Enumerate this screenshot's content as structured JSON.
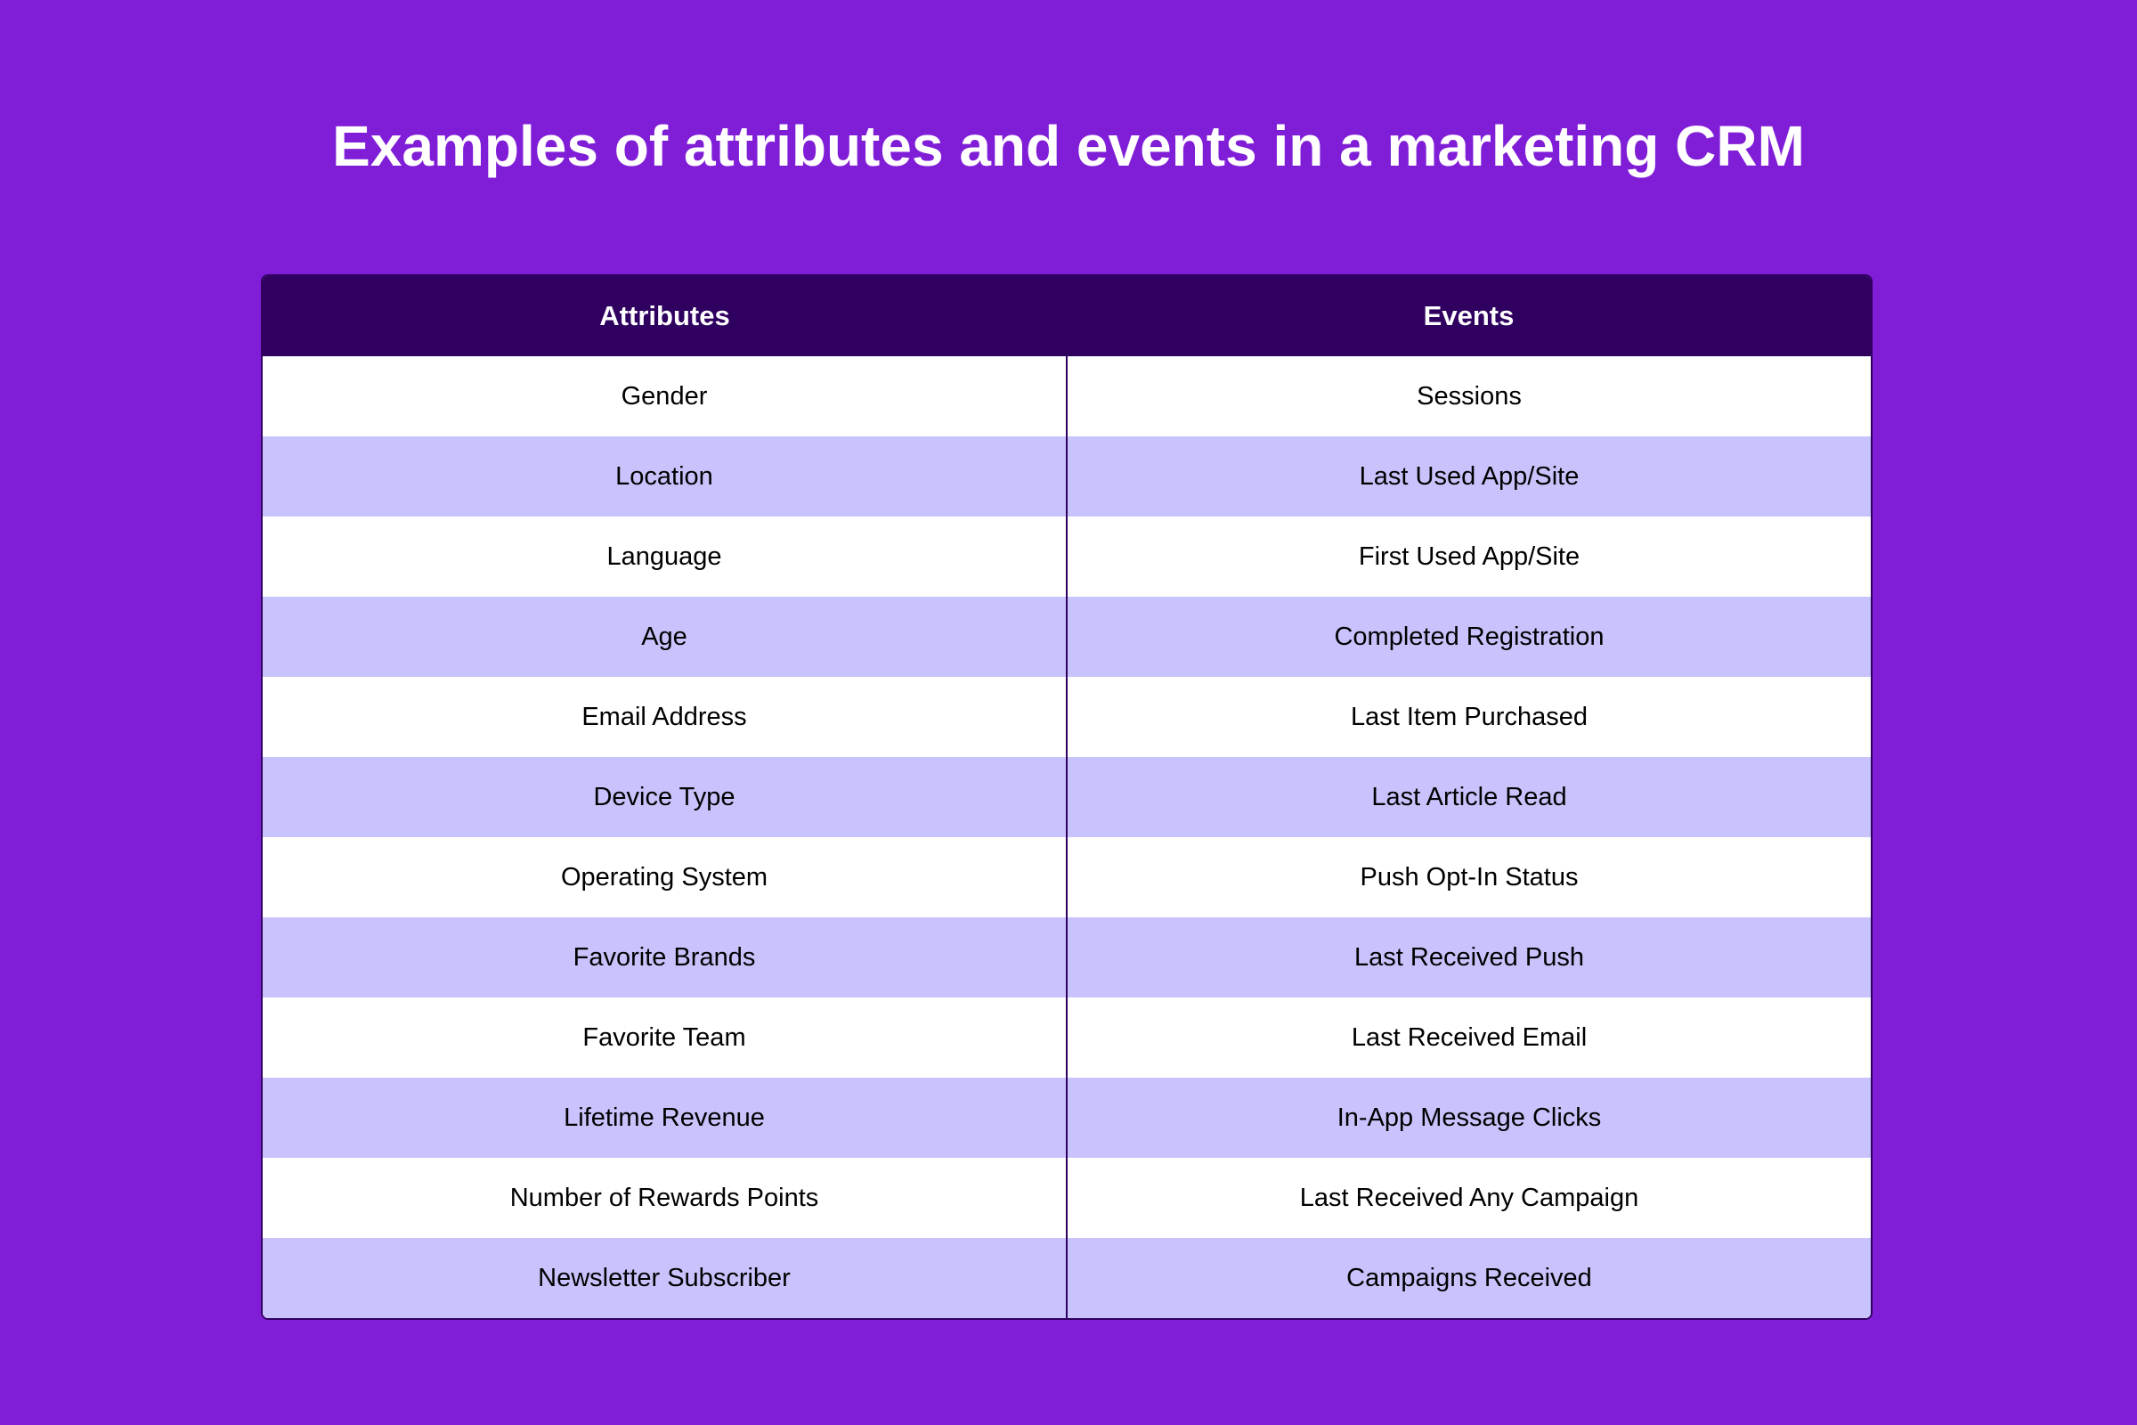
{
  "title": "Examples of attributes and events in a marketing CRM",
  "colors": {
    "background": "#801ed7",
    "header": "#2f0060",
    "stripe": "#c8c3fc"
  },
  "table": {
    "headers": [
      "Attributes",
      "Events"
    ],
    "rows": [
      [
        "Gender",
        "Sessions"
      ],
      [
        "Location",
        "Last Used App/Site"
      ],
      [
        "Language",
        "First Used App/Site"
      ],
      [
        "Age",
        "Completed Registration"
      ],
      [
        "Email Address",
        "Last Item Purchased"
      ],
      [
        "Device Type",
        "Last Article Read"
      ],
      [
        "Operating System",
        "Push Opt-In Status"
      ],
      [
        "Favorite Brands",
        "Last Received Push"
      ],
      [
        "Favorite Team",
        "Last Received Email"
      ],
      [
        "Lifetime Revenue",
        "In-App Message Clicks"
      ],
      [
        "Number of Rewards Points",
        "Last Received Any Campaign"
      ],
      [
        "Newsletter Subscriber",
        "Campaigns Received"
      ]
    ]
  }
}
